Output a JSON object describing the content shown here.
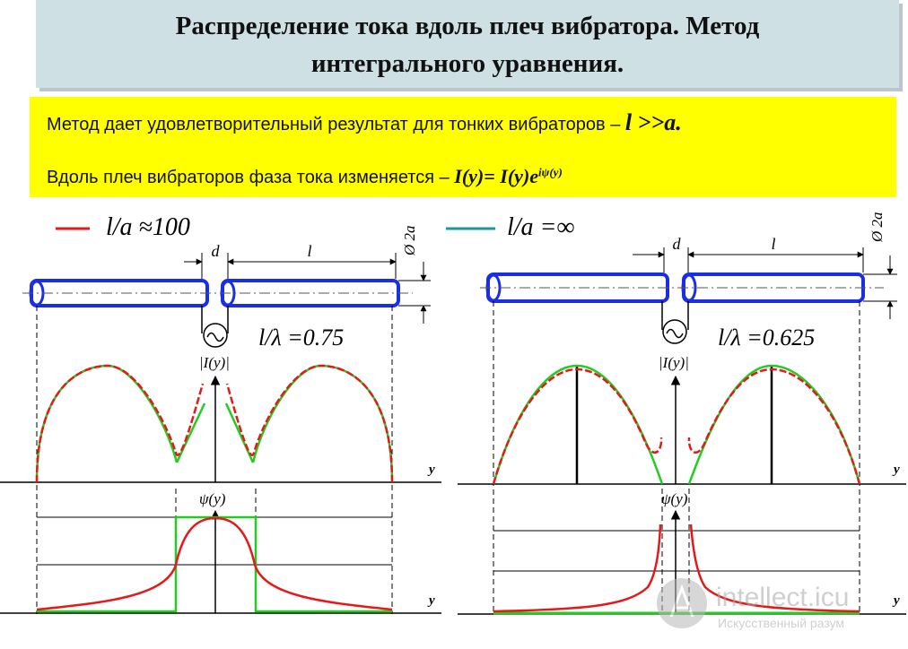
{
  "header": {
    "title_line1": "Распределение тока вдоль плеч вибратора. Метод",
    "title_line2": "интегрального уравнения."
  },
  "info": {
    "line1_text": "Метод дает удовлетворительный результат  для тонких вибраторов – ",
    "line1_formula": "l >>a.",
    "line2_text": "Вдоль плеч вибраторов фаза тока изменяется – ",
    "line2_formula": "I(y)= I(y)e",
    "line2_exponent": "iψ(y)"
  },
  "left_panel": {
    "legend": "l/a ≈100",
    "legend_color": "#e41a1a",
    "ratio": "l/λ =0.75",
    "gap_label": "d",
    "arm_label": "l",
    "diameter_label": "Ø 2a",
    "amp_axis": "|I(y)|",
    "phase_axis": "ψ(y)",
    "y_axis": "y",
    "y_axis_2": "y"
  },
  "right_panel": {
    "legend": "l/a =∞",
    "legend_color": "#1a9a9a",
    "ratio": "l/λ =0.625",
    "gap_label": "d",
    "arm_label": "l",
    "diameter_label": "Ø 2a",
    "amp_axis": "|I(y)|",
    "phase_axis": "ψ(y)",
    "y_axis": "y",
    "y_axis_2": "y"
  },
  "colors": {
    "antenna": "#1a2ee6",
    "curve_thin": "#e41a1a",
    "curve_ideal": "#22cc22",
    "title_bg": "#cfe0e4",
    "info_bg": "#ffff00"
  },
  "watermark": {
    "name": "intellect.icu",
    "tagline": "Искусственный разум"
  }
}
